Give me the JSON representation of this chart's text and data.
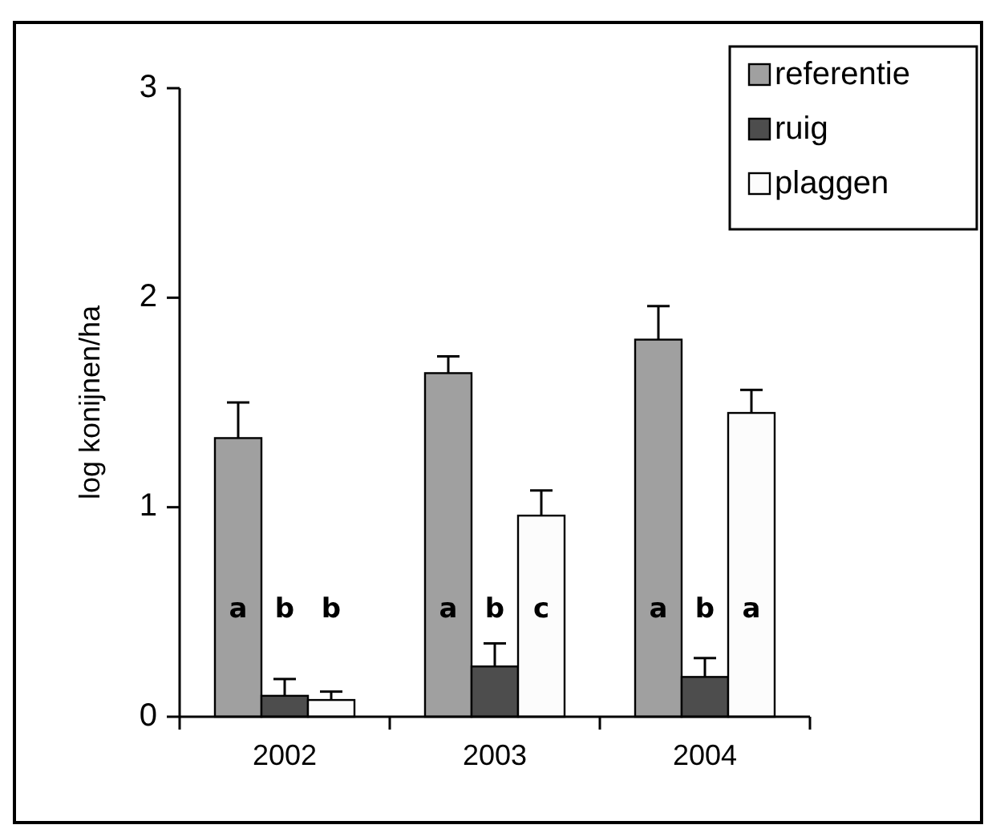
{
  "chart_data": {
    "type": "bar",
    "ylabel": "log konijnen/ha",
    "categories": [
      "2002",
      "2003",
      "2004"
    ],
    "series": [
      {
        "name": "referentie",
        "color": "#a0a0a0",
        "values": [
          1.33,
          1.64,
          1.8
        ],
        "errors": [
          [
            1.33,
            1.5
          ],
          [
            1.64,
            1.72
          ],
          [
            1.8,
            1.96
          ]
        ]
      },
      {
        "name": "ruig",
        "color": "#4d4d4d",
        "values": [
          0.1,
          0.24,
          0.19
        ],
        "errors": [
          [
            0.1,
            0.18
          ],
          [
            0.24,
            0.35
          ],
          [
            0.19,
            0.28
          ]
        ]
      },
      {
        "name": "plaggen",
        "color": "#fcfcfc",
        "values": [
          0.08,
          0.96,
          1.45
        ],
        "errors": [
          [
            0.08,
            0.12
          ],
          [
            0.96,
            1.08
          ],
          [
            1.45,
            1.56
          ]
        ]
      }
    ],
    "ylim": [
      0,
      3
    ],
    "yticks": [
      0,
      1,
      2,
      3
    ],
    "grid": false,
    "legend": "top right",
    "annotations": [
      "a",
      "b",
      "b",
      "a",
      "b",
      "c",
      "a",
      "b",
      "a"
    ]
  }
}
